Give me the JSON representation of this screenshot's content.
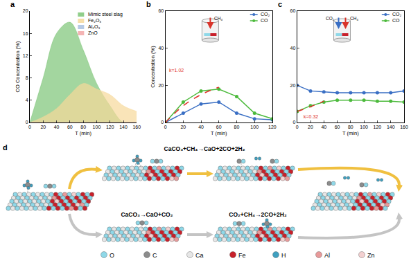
{
  "chart_data": [
    {
      "label": "a",
      "type": "area",
      "x_label": "T (min)",
      "y_label": "CO Concentration (%)",
      "x": [
        0,
        20,
        40,
        60,
        80,
        100,
        120,
        140,
        160
      ],
      "series": [
        {
          "name": "Mimic steel slag",
          "color": "#7cc576",
          "values": [
            0,
            8,
            16,
            18,
            13,
            7,
            3,
            0,
            0
          ]
        },
        {
          "name": "Fe₂O₃",
          "color": "#f6d89a",
          "values": [
            0,
            1,
            2.5,
            5,
            7,
            6,
            5,
            3,
            2
          ]
        },
        {
          "name": "Al₂O₃",
          "color": "#a9c1e0",
          "values": [
            0,
            0,
            0,
            0,
            0,
            0,
            0,
            0,
            0
          ]
        },
        {
          "name": "ZnO",
          "color": "#f2a7a7",
          "values": [
            0,
            0,
            0,
            0,
            0,
            0,
            0,
            0,
            0
          ]
        }
      ],
      "xlim": [
        0,
        160
      ],
      "xticks": [
        0,
        20,
        40,
        60,
        80,
        100,
        120,
        140,
        160
      ],
      "ylim": [
        0,
        20
      ],
      "yticks": [
        0,
        4,
        8,
        12,
        16,
        20
      ],
      "grid": false,
      "legend": "upper right"
    },
    {
      "label": "b",
      "type": "line",
      "marker": "circle",
      "x_label": "T (min)",
      "y_label": "Concentration (%)",
      "x": [
        0,
        20,
        40,
        60,
        80,
        100,
        120
      ],
      "series": [
        {
          "name": "CO₂",
          "color": "#3a6fc4",
          "values": [
            0,
            5,
            10,
            11,
            5,
            2,
            1.5
          ]
        },
        {
          "name": "CO",
          "color": "#4cba3c",
          "values": [
            0,
            11,
            17,
            18,
            14,
            5,
            2
          ]
        }
      ],
      "fit": {
        "color": "#e0302a",
        "line_style": "dashed",
        "x": [
          0,
          20,
          40,
          60
        ],
        "values": [
          0,
          9,
          15,
          19
        ]
      },
      "annotations": [
        {
          "text": "k=1.02",
          "x": 12,
          "y": 28,
          "color": "#e0302a"
        }
      ],
      "inset": {
        "labels": [
          "CH₄"
        ],
        "colors": [
          "#d9342b"
        ]
      },
      "xlim": [
        0,
        120
      ],
      "xticks": [
        0,
        20,
        40,
        60,
        80,
        100,
        120
      ],
      "ylim": [
        0,
        60
      ],
      "yticks": [
        0,
        20,
        40,
        60
      ],
      "grid": false,
      "legend": "upper right"
    },
    {
      "label": "c",
      "type": "line",
      "marker": "circle",
      "x_label": "T (min)",
      "x": [
        0,
        20,
        40,
        60,
        80,
        100,
        120,
        140,
        160
      ],
      "series": [
        {
          "name": "CO₂",
          "color": "#3a6fc4",
          "values": [
            20,
            17,
            16.5,
            16,
            16,
            16,
            16,
            16,
            17
          ]
        },
        {
          "name": "CO",
          "color": "#4cba3c",
          "values": [
            6,
            9,
            11,
            12,
            12,
            12,
            11.5,
            11.5,
            11
          ]
        }
      ],
      "fit": {
        "color": "#e0302a",
        "line_style": "dashed",
        "x": [
          0,
          20,
          40
        ],
        "values": [
          6,
          8.5,
          11.5
        ]
      },
      "annotations": [
        {
          "text": "k=0.32",
          "x": 20,
          "y": 3,
          "color": "#e0302a"
        }
      ],
      "inset": {
        "labels": [
          "CO₂",
          "CH₄"
        ],
        "colors": [
          "#3a6fc4",
          "#d9342b"
        ]
      },
      "xlim": [
        0,
        160
      ],
      "xticks": [
        0,
        20,
        40,
        60,
        80,
        100,
        120,
        140,
        160
      ],
      "ylim": [
        0,
        60
      ],
      "yticks": [
        0,
        20,
        40,
        60
      ],
      "grid": false,
      "legend": "upper right"
    }
  ],
  "diagram": {
    "label": "d",
    "upper_path": {
      "equation": "CaCO₃+CH₄→CaO+2CO+2H₂"
    },
    "lower_path": {
      "equations": [
        "CaCO₃→CaO+CO₂",
        "CO₂+CH₄→2CO+2H₂"
      ]
    },
    "atoms": [
      {
        "symbol": "O",
        "color": "#8fd8e8"
      },
      {
        "symbol": "C",
        "color": "#8c8c8c"
      },
      {
        "symbol": "Ca",
        "color": "#e6e6e6"
      },
      {
        "symbol": "Fe",
        "color": "#c8202a"
      },
      {
        "symbol": "H",
        "color": "#3fa0c0"
      },
      {
        "symbol": "Al",
        "color": "#e89a9a"
      },
      {
        "symbol": "Zn",
        "color": "#f3d0d0"
      }
    ]
  }
}
